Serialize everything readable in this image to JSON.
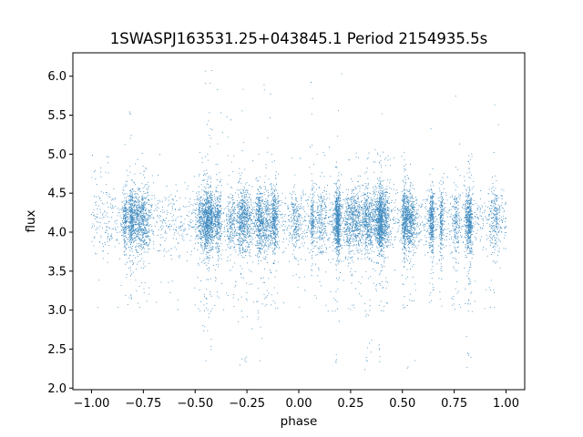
{
  "chart_data": {
    "type": "scatter",
    "title": "1SWASPJ163531.25+043845.1 Period 2154935.5s",
    "xlabel": "phase",
    "ylabel": "flux",
    "xlim": [
      -1.09,
      1.09
    ],
    "ylim": [
      1.98,
      6.3
    ],
    "x_ticks": [
      -1.0,
      -0.75,
      -0.5,
      -0.25,
      0.0,
      0.25,
      0.5,
      0.75,
      1.0
    ],
    "x_tick_labels": [
      "−1.00",
      "−0.75",
      "−0.50",
      "−0.25",
      "0.00",
      "0.25",
      "0.50",
      "0.75",
      "1.00"
    ],
    "y_ticks": [
      2.0,
      2.5,
      3.0,
      3.5,
      4.0,
      4.5,
      5.0,
      5.5,
      6.0
    ],
    "y_tick_labels": [
      "2.0",
      "2.5",
      "3.0",
      "3.5",
      "4.0",
      "4.5",
      "5.0",
      "5.5",
      "6.0"
    ],
    "grid": false,
    "marker_color": "#1f77b4",
    "series": [
      {
        "x_range": [
          -1.0,
          1.0
        ],
        "flux_median": 4.15,
        "flux_core_range": [
          3.7,
          4.6
        ],
        "flux_full_range": [
          2.2,
          6.1
        ],
        "point_count_approx": 12000
      }
    ]
  }
}
